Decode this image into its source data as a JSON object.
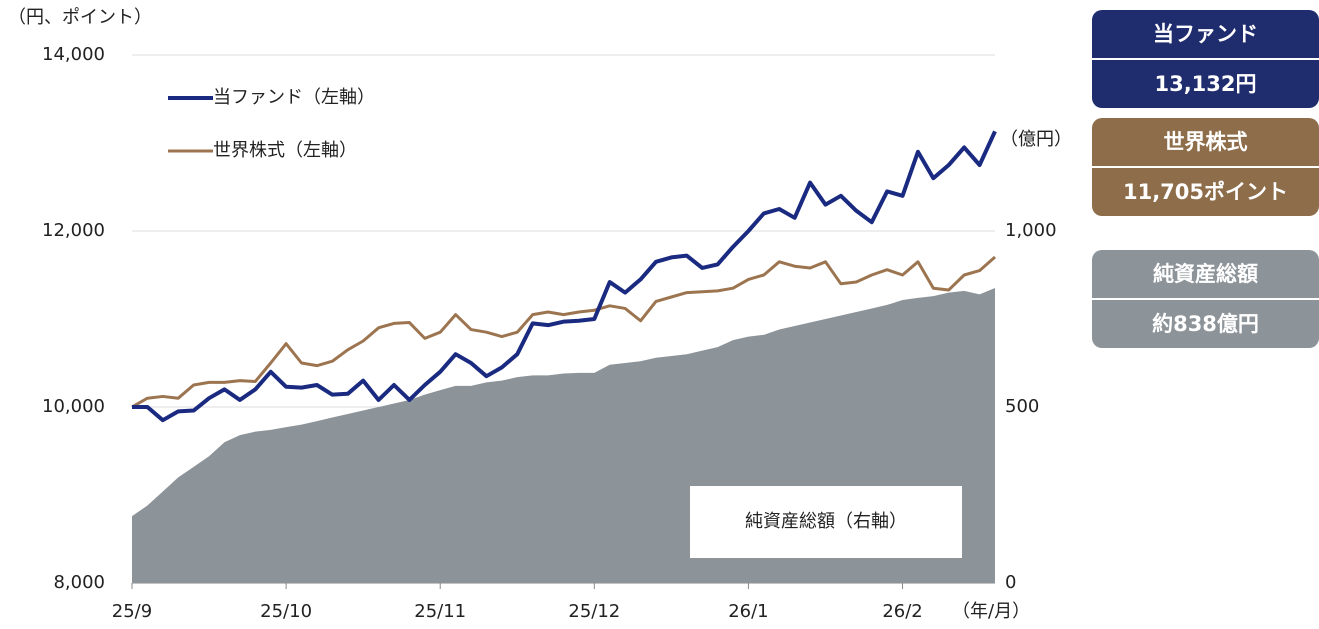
{
  "chart_data": {
    "type": "line",
    "y_unit_label": "（円、ポイント）",
    "y2_unit_label": "（億円）",
    "x_unit_label": "（年/月）",
    "categories": [
      "25/9",
      null,
      null,
      null,
      null,
      null,
      null,
      null,
      null,
      null,
      "25/10",
      null,
      null,
      null,
      null,
      null,
      null,
      null,
      null,
      null,
      "25/11",
      null,
      null,
      null,
      null,
      null,
      null,
      null,
      null,
      null,
      "25/12",
      null,
      null,
      null,
      null,
      null,
      null,
      null,
      null,
      null,
      "26/1",
      null,
      null,
      null,
      null,
      null,
      null,
      null,
      null,
      null,
      "26/2",
      null,
      null,
      null,
      null,
      null,
      null
    ],
    "ylim": [
      8000,
      14000
    ],
    "yticks": [
      {
        "value": 8000,
        "label": "8,000"
      },
      {
        "value": 10000,
        "label": "10,000"
      },
      {
        "value": 12000,
        "label": "12,000"
      },
      {
        "value": 14000,
        "label": "14,000"
      }
    ],
    "y2lim": [
      0,
      1500
    ],
    "y2ticks": [
      0,
      500,
      {
        "value": 1000,
        "label": "1,000"
      }
    ],
    "grid": true,
    "series": [
      {
        "name": "純資産総額（右軸）",
        "type": "area",
        "axis": "y2",
        "color": "#8c9399",
        "values": [
          190,
          220,
          260,
          300,
          330,
          360,
          400,
          420,
          430,
          435,
          443,
          450,
          460,
          470,
          480,
          490,
          500,
          510,
          520,
          535,
          548,
          560,
          560,
          570,
          575,
          585,
          590,
          590,
          595,
          597,
          597,
          620,
          625,
          630,
          640,
          645,
          650,
          660,
          670,
          690,
          700,
          705,
          720,
          730,
          740,
          750,
          760,
          770,
          780,
          790,
          804,
          810,
          815,
          825,
          830,
          820,
          838
        ]
      },
      {
        "name": "世界株式（左軸）",
        "type": "line",
        "color": "#9c7550",
        "values": [
          10000,
          10100,
          10120,
          10100,
          10250,
          10280,
          10280,
          10300,
          10290,
          10500,
          10720,
          10500,
          10470,
          10520,
          10650,
          10750,
          10900,
          10950,
          10960,
          10780,
          10850,
          11050,
          10880,
          10850,
          10800,
          10850,
          11050,
          11080,
          11050,
          11080,
          11100,
          11150,
          11120,
          10980,
          11200,
          11250,
          11300,
          11310,
          11320,
          11350,
          11450,
          11500,
          11650,
          11600,
          11580,
          11650,
          11400,
          11420,
          11500,
          11560,
          11500,
          11650,
          11350,
          11330,
          11500,
          11550,
          11705
        ]
      },
      {
        "name": "当ファンド（左軸）",
        "type": "line",
        "color": "#1a2a80",
        "values": [
          10000,
          10000,
          9850,
          9950,
          9960,
          10100,
          10200,
          10080,
          10200,
          10400,
          10230,
          10220,
          10250,
          10140,
          10150,
          10300,
          10080,
          10250,
          10080,
          10250,
          10400,
          10600,
          10500,
          10350,
          10450,
          10600,
          10950,
          10930,
          10970,
          10980,
          11000,
          11420,
          11300,
          11450,
          11650,
          11700,
          11720,
          11580,
          11620,
          11820,
          12000,
          12200,
          12250,
          12150,
          12550,
          12300,
          12400,
          12230,
          12100,
          12450,
          12400,
          12900,
          12600,
          12750,
          12950,
          12750,
          13132
        ]
      }
    ],
    "summary_boxes": [
      {
        "name": "当ファンド",
        "value": "13,132円",
        "color": "#1f2d6e"
      },
      {
        "name": "世界株式",
        "value": "11,705ポイント",
        "color": "#8e6d4a"
      },
      {
        "name": "純資産総額",
        "value": "約838億円",
        "color": "#8c9399"
      }
    ]
  }
}
